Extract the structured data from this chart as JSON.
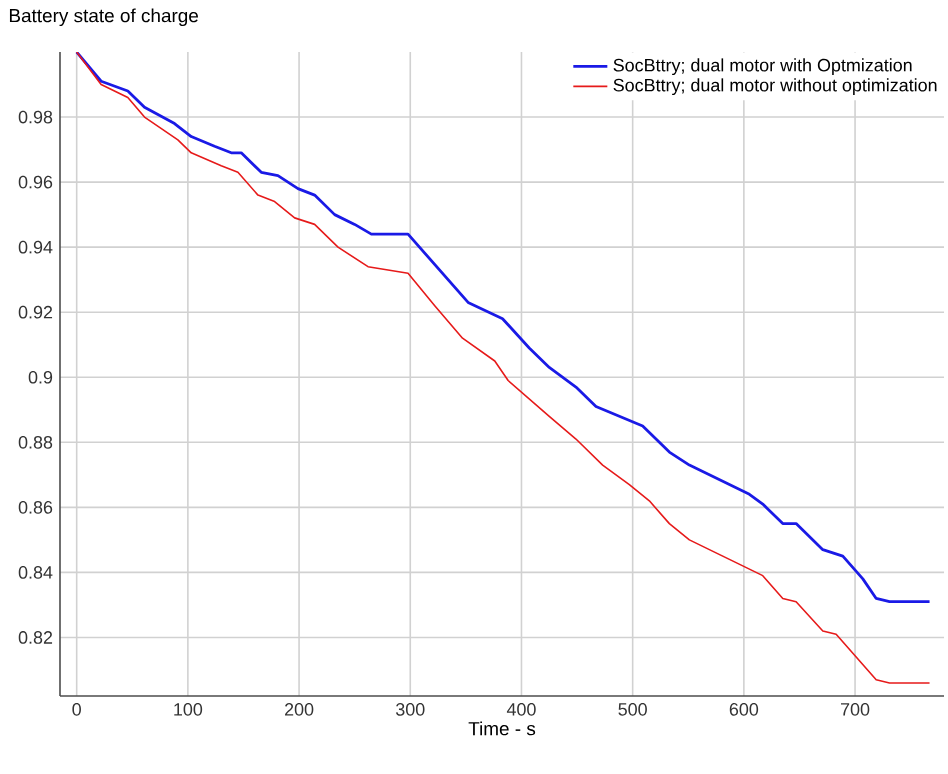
{
  "chart_data": {
    "type": "line",
    "ylabel": "Battery state of charge",
    "xlabel": "Time - s",
    "xlim": [
      -15,
      780
    ],
    "ylim": [
      0.802,
      1.0
    ],
    "xticks": [
      0,
      100,
      200,
      300,
      400,
      500,
      600,
      700
    ],
    "yticks": [
      0.82,
      0.84,
      0.86,
      0.88,
      0.9,
      0.92,
      0.94,
      0.96,
      0.98
    ],
    "grid": true,
    "legend": "top right",
    "line_style": "solid",
    "marker": "none",
    "series": [
      {
        "name": "SocBttry; dual motor with Optmization",
        "color": "#1a1ae6",
        "x": [
          0,
          22,
          46,
          61,
          88,
          103,
          124,
          139,
          148,
          166,
          181,
          199,
          214,
          232,
          250,
          265,
          298,
          316,
          352,
          383,
          407,
          425,
          449,
          467,
          509,
          533,
          551,
          581,
          605,
          617,
          635,
          647,
          671,
          689,
          707,
          719,
          731,
          767
        ],
        "values": [
          1.0,
          0.991,
          0.988,
          0.983,
          0.978,
          0.974,
          0.971,
          0.969,
          0.969,
          0.963,
          0.962,
          0.958,
          0.956,
          0.95,
          0.947,
          0.944,
          0.944,
          0.937,
          0.923,
          0.918,
          0.909,
          0.903,
          0.897,
          0.891,
          0.885,
          0.877,
          0.873,
          0.868,
          0.864,
          0.861,
          0.855,
          0.855,
          0.847,
          0.845,
          0.838,
          0.832,
          0.831,
          0.831
        ]
      },
      {
        "name": "SocBttry; dual motor without optimization",
        "color": "#e61a1a",
        "x": [
          0,
          22,
          46,
          61,
          91,
          103,
          130,
          145,
          163,
          178,
          196,
          214,
          235,
          262,
          298,
          322,
          347,
          376,
          388,
          425,
          449,
          473,
          497,
          515,
          533,
          551,
          581,
          599,
          617,
          635,
          647,
          671,
          683,
          701,
          719,
          731,
          767
        ],
        "values": [
          1.0,
          0.99,
          0.986,
          0.98,
          0.973,
          0.969,
          0.965,
          0.963,
          0.956,
          0.954,
          0.949,
          0.947,
          0.94,
          0.934,
          0.932,
          0.922,
          0.912,
          0.905,
          0.899,
          0.888,
          0.881,
          0.873,
          0.867,
          0.862,
          0.855,
          0.85,
          0.845,
          0.842,
          0.839,
          0.832,
          0.831,
          0.822,
          0.821,
          0.814,
          0.807,
          0.806,
          0.806
        ]
      }
    ]
  }
}
